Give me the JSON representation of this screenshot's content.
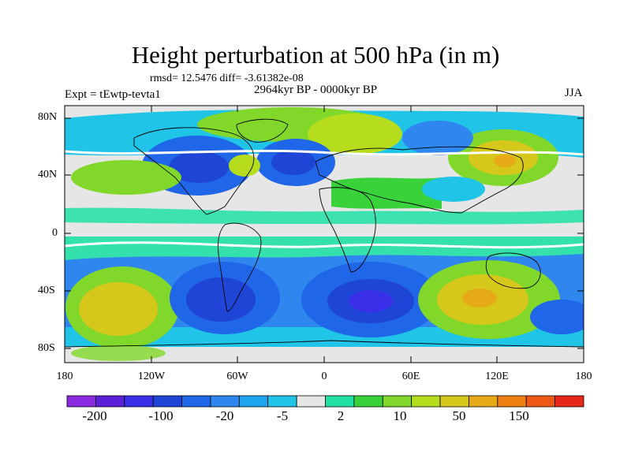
{
  "title": "Height perturbation at 500 hPa (in m)",
  "stats": "rmsd= 12.5476 diff= -3.61382e-08",
  "subtitle": "2964kyr BP - 0000kyr BP",
  "expt": "Expt = tEwtp-tevta1",
  "season": "JJA",
  "lat_ticks": [
    "80N",
    "40N",
    "0",
    "40S",
    "80S"
  ],
  "lon_ticks": [
    "180",
    "120W",
    "60W",
    "0",
    "60E",
    "120E",
    "180"
  ],
  "colorbar": {
    "colors": [
      "#8a2be2",
      "#5a1fd6",
      "#3a2fe8",
      "#1e45d6",
      "#1f66e8",
      "#2f86ee",
      "#1ea4ee",
      "#20c4e6",
      "#e6e6e6",
      "#20e0a6",
      "#3ad23a",
      "#82d82a",
      "#b6dc1e",
      "#d6c81a",
      "#e6aa16",
      "#ee8014",
      "#ee5a16",
      "#e62818"
    ],
    "labels": [
      "-200",
      "-100",
      "-20",
      "-5",
      "2",
      "10",
      "50",
      "150"
    ]
  },
  "colors": {
    "neutral": "#e6e6e6",
    "deep_blue": "#2b3fd0",
    "blue": "#1f66e8",
    "light_blue": "#2f86ee",
    "cyan": "#20c4e6",
    "teal": "#20e0a6",
    "green": "#3ad23a",
    "yellow_green": "#b6dc1e",
    "yellow": "#d6c81a",
    "orange": "#e6aa16"
  }
}
